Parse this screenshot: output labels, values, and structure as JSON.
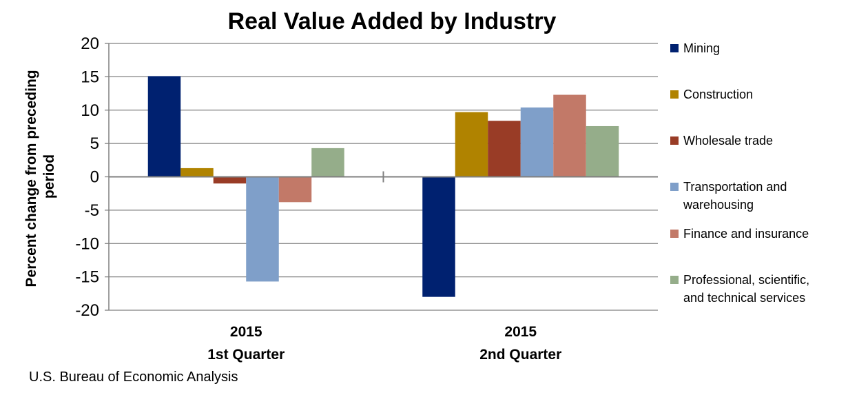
{
  "chart_data": {
    "type": "bar",
    "title": "Real Value Added by Industry",
    "ylabel": "Percent change from preceding period",
    "xlabel": "",
    "ylim": [
      -20,
      20
    ],
    "yticks": [
      20,
      15,
      10,
      5,
      0,
      -5,
      -10,
      -15,
      -20
    ],
    "grid": true,
    "legend_position": "right",
    "categories": [
      {
        "year": "2015",
        "quarter": "1st Quarter"
      },
      {
        "year": "2015",
        "quarter": "2nd Quarter"
      }
    ],
    "series": [
      {
        "name": "Mining",
        "color": "#002170",
        "values": [
          15.1,
          -18.0
        ]
      },
      {
        "name": "Construction",
        "color": "#B08300",
        "values": [
          1.3,
          9.7
        ]
      },
      {
        "name": "Wholesale trade",
        "color": "#993C26",
        "values": [
          -1.0,
          8.4
        ]
      },
      {
        "name": "Transportation and warehousing",
        "color": "#7F9FC9",
        "values": [
          -15.7,
          10.4
        ]
      },
      {
        "name": "Finance and insurance",
        "color": "#C27968",
        "values": [
          -3.8,
          12.3
        ]
      },
      {
        "name": "Professional, scientific, and technical services",
        "color": "#95AD8A",
        "values": [
          4.3,
          7.6
        ]
      }
    ],
    "legend_lines": [
      [
        "Mining"
      ],
      [
        "Construction"
      ],
      [
        "Wholesale trade"
      ],
      [
        "Transportation and",
        "warehousing"
      ],
      [
        "Finance and insurance"
      ],
      [
        "Professional, scientific,",
        "and technical services"
      ]
    ]
  },
  "source": "U.S. Bureau of Economic Analysis"
}
